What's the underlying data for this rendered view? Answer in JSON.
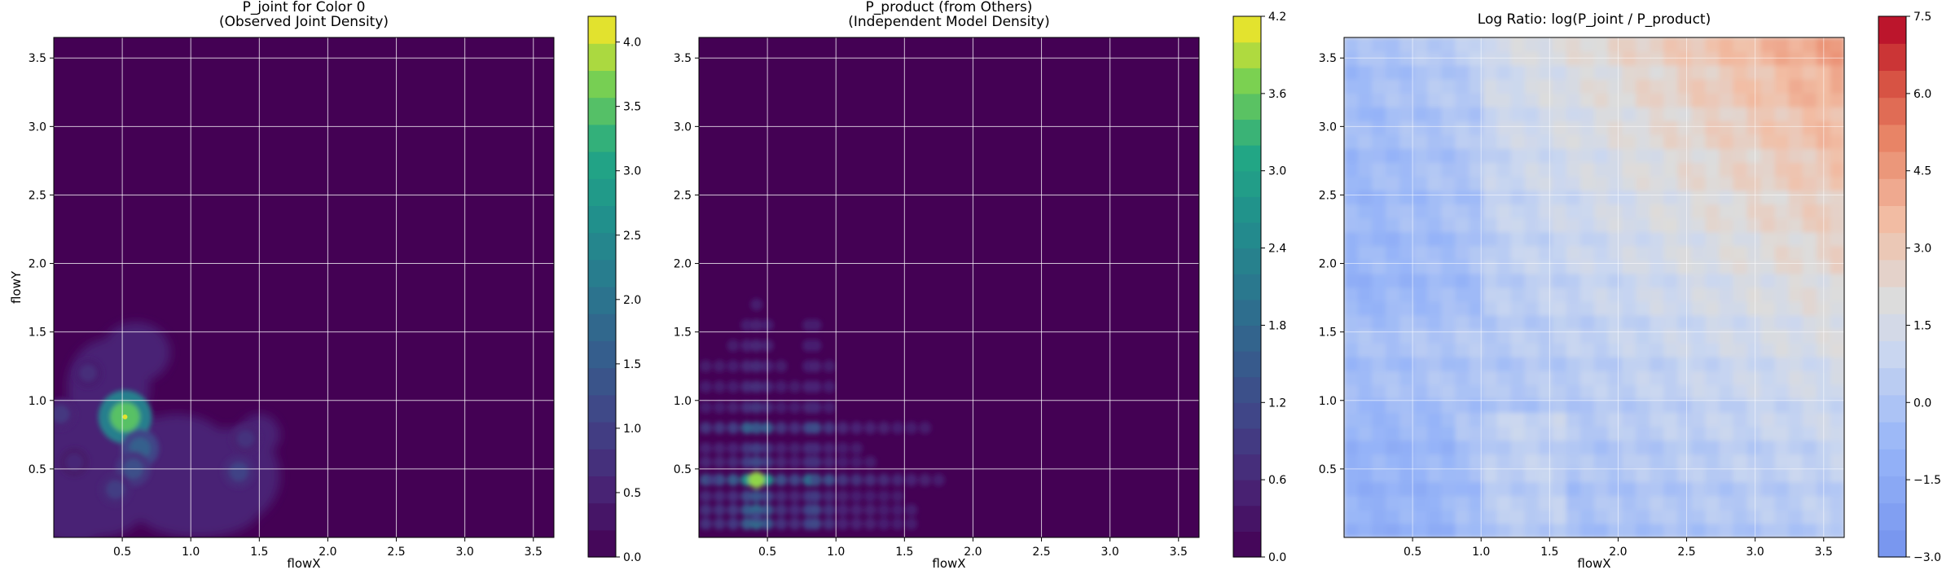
{
  "chart_data": [
    {
      "type": "heatmap",
      "subtype": "filled-contour",
      "title": "P_joint for Color 0\n(Observed Joint Density)",
      "xlabel": "flowX",
      "ylabel": "flowY",
      "xlim": [
        0.0,
        3.65
      ],
      "ylim": [
        0.0,
        3.65
      ],
      "xticks": [
        "0.5",
        "1.0",
        "1.5",
        "2.0",
        "2.5",
        "3.0",
        "3.5"
      ],
      "yticks": [
        "0.5",
        "1.0",
        "1.5",
        "2.0",
        "2.5",
        "3.0",
        "3.5"
      ],
      "grid": true,
      "colormap": "viridis",
      "colorbar": {
        "min": 0.0,
        "max": 4.2,
        "levels": 20,
        "ticks": [
          "0.0",
          "0.5",
          "1.0",
          "1.5",
          "2.0",
          "2.5",
          "3.0",
          "3.5",
          "4.0"
        ],
        "tick_values": [
          0,
          0.5,
          1.0,
          1.5,
          2.0,
          2.5,
          3.0,
          3.5,
          4.0
        ]
      },
      "peaks": [
        {
          "x": 0.52,
          "y": 0.88,
          "value": 4.1
        },
        {
          "x": 0.63,
          "y": 0.65,
          "value": 1.9
        },
        {
          "x": 0.58,
          "y": 0.5,
          "value": 1.5
        },
        {
          "x": 1.35,
          "y": 0.48,
          "value": 1.2
        },
        {
          "x": 0.45,
          "y": 0.35,
          "value": 1.1
        },
        {
          "x": 0.05,
          "y": 0.9,
          "value": 1.0
        },
        {
          "x": 0.25,
          "y": 1.2,
          "value": 0.8
        },
        {
          "x": 1.4,
          "y": 0.72,
          "value": 0.9
        },
        {
          "x": 0.15,
          "y": 0.55,
          "value": 0.7
        }
      ]
    },
    {
      "type": "heatmap",
      "subtype": "filled-contour",
      "title": "P_product (from Others)\n(Independent Model Density)",
      "xlabel": "flowX",
      "ylabel": "",
      "xlim": [
        0.0,
        3.65
      ],
      "ylim": [
        0.0,
        3.65
      ],
      "xticks": [
        "0.5",
        "1.0",
        "1.5",
        "2.0",
        "2.5",
        "3.0",
        "3.5"
      ],
      "yticks": [
        "0.5",
        "1.0",
        "1.5",
        "2.0",
        "2.5",
        "3.0",
        "3.5"
      ],
      "grid": true,
      "colormap": "viridis",
      "colorbar": {
        "min": 0.0,
        "max": 4.2,
        "levels": 21,
        "ticks": [
          "0.0",
          "0.6",
          "1.2",
          "1.8",
          "2.4",
          "3.0",
          "3.6",
          "4.2"
        ],
        "tick_values": [
          0,
          0.6,
          1.2,
          1.8,
          2.4,
          3.0,
          3.6,
          4.2
        ]
      },
      "peaks": [
        {
          "x": 0.42,
          "y": 0.42,
          "value": 4.2
        },
        {
          "x": 0.42,
          "y": 0.8,
          "value": 1.6
        },
        {
          "x": 0.85,
          "y": 0.42,
          "value": 1.4
        },
        {
          "x": 0.42,
          "y": 0.15,
          "value": 1.2
        },
        {
          "x": 0.1,
          "y": 0.42,
          "value": 1.0
        }
      ]
    },
    {
      "type": "heatmap",
      "subtype": "filled-contour",
      "title": "Log Ratio: log(P_joint / P_product)",
      "xlabel": "flowX",
      "ylabel": "",
      "xlim": [
        0.0,
        3.65
      ],
      "ylim": [
        0.0,
        3.65
      ],
      "xticks": [
        "0.5",
        "1.0",
        "1.5",
        "2.0",
        "2.5",
        "3.0",
        "3.5"
      ],
      "yticks": [
        "0.5",
        "1.0",
        "1.5",
        "2.0",
        "2.5",
        "3.0",
        "3.5"
      ],
      "grid": true,
      "colormap": "coolwarm",
      "colorbar": {
        "min": -3.0,
        "max": 7.5,
        "levels": 20,
        "ticks": [
          "−3.0",
          "−1.5",
          "0.0",
          "1.5",
          "3.0",
          "4.5",
          "6.0",
          "7.5"
        ],
        "tick_values": [
          -3.0,
          -1.5,
          0.0,
          1.5,
          3.0,
          4.5,
          6.0,
          7.5
        ]
      },
      "trend": "log ratio increases from about −1 near the lower-left toward about 6 at the upper-right"
    }
  ]
}
